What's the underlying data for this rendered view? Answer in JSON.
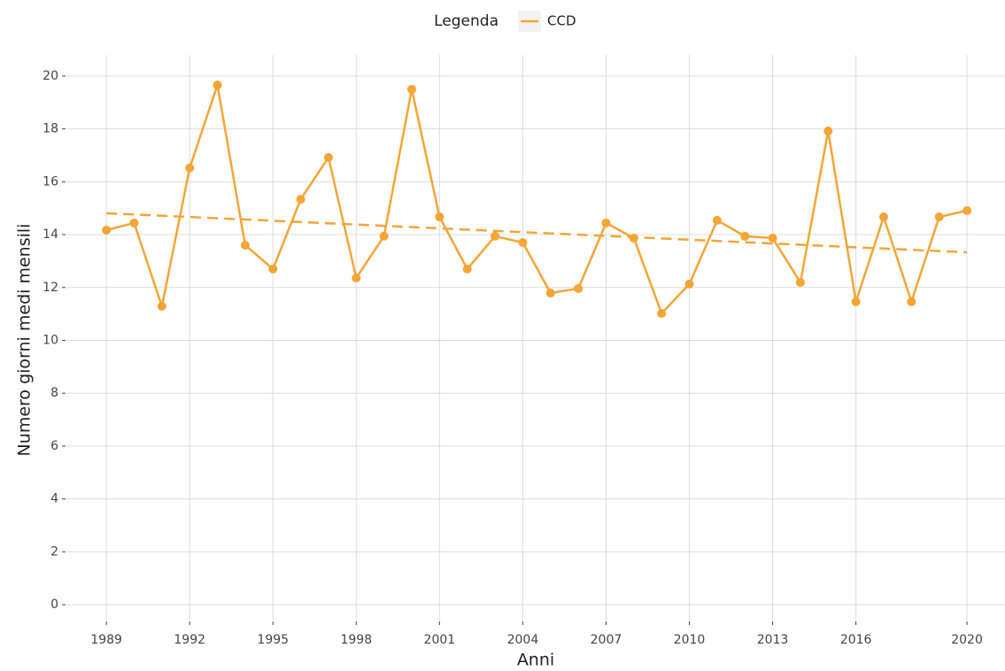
{
  "chart_data": {
    "type": "line",
    "x_label": "Anni",
    "y_label": "Numero giorni medi mensili",
    "legend_title": "Legenda",
    "legend_position": "top",
    "x": [
      1989,
      1990,
      1991,
      1992,
      1993,
      1994,
      1995,
      1996,
      1997,
      1998,
      1999,
      2000,
      2001,
      2002,
      2003,
      2004,
      2005,
      2006,
      2007,
      2008,
      2009,
      2010,
      2011,
      2012,
      2013,
      2014,
      2015,
      2016,
      2017,
      2018,
      2019,
      2020
    ],
    "series": [
      {
        "name": "CCD",
        "color": "#f4a535",
        "values": [
          14.17,
          14.44,
          11.29,
          16.52,
          19.66,
          13.6,
          12.7,
          15.34,
          16.92,
          12.36,
          13.94,
          19.5,
          14.67,
          12.7,
          13.94,
          13.7,
          11.79,
          11.96,
          14.44,
          13.87,
          11.02,
          12.13,
          14.54,
          13.94,
          13.87,
          12.19,
          17.92,
          11.46,
          14.67,
          11.46,
          14.67,
          14.91
        ]
      }
    ],
    "trend": {
      "x": [
        1989,
        2020
      ],
      "values": [
        14.81,
        13.33
      ]
    },
    "xlim": [
      1987.56,
      2021.37
    ],
    "ylim": [
      -0.6,
      20.8
    ],
    "xticks": [
      1989,
      1992,
      1995,
      1998,
      2001,
      2004,
      2007,
      2010,
      2013,
      2016,
      2020
    ],
    "yticks": [
      0,
      2,
      4,
      6,
      8,
      10,
      12,
      14,
      16,
      18,
      20
    ],
    "grid": true
  }
}
